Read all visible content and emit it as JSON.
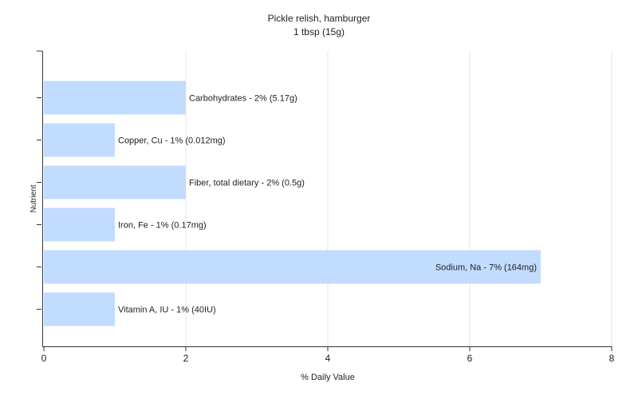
{
  "chart_data": {
    "type": "bar",
    "orientation": "horizontal",
    "title": "Pickle relish, hamburger",
    "subtitle": "1 tbsp (15g)",
    "xlabel": "% Daily Value",
    "ylabel": "Nutrient",
    "xlim": [
      0,
      8
    ],
    "xticks": [
      "0",
      "2",
      "4",
      "6",
      "8"
    ],
    "grid": "vertical",
    "bar_color": "#c2dcff",
    "categories": [
      "Carbohydrates",
      "Copper, Cu",
      "Fiber, total dietary",
      "Iron, Fe",
      "Sodium, Na",
      "Vitamin A, IU"
    ],
    "values": [
      2,
      1,
      2,
      1,
      7,
      1
    ],
    "labels": [
      "Carbohydrates - 2% (5.17g)",
      "Copper, Cu - 1% (0.012mg)",
      "Fiber, total dietary - 2% (0.5g)",
      "Iron, Fe - 1% (0.17mg)",
      "Sodium, Na - 7% (164mg)",
      "Vitamin A, IU - 1% (40IU)"
    ]
  }
}
